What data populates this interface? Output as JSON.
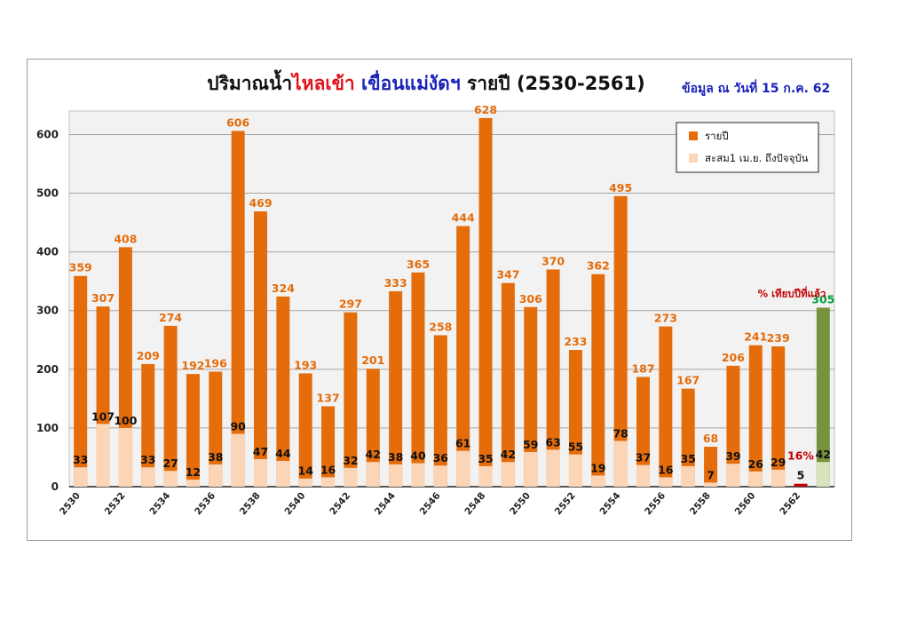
{
  "title": {
    "part1": "ปริมาณน้ำ",
    "part2": "ไหลเข้า",
    "part3": "เขื่อนแม่งัดฯ",
    "part4": "รายปี  (2530-2561)"
  },
  "date_info": "ข้อมูล ณ วันที่ 15 ก.ค. 62",
  "annotation_text": "% เทียบปีที่แล้ว",
  "percent_label": "16%",
  "colors": {
    "annual": "#e46c0a",
    "cumulative": "#fbd5b5",
    "current_annual": "#77933c",
    "current_cumulative": "#d7e4bd",
    "current_value_label": "#00a040",
    "annual_label": "#e46c0a",
    "current_bar": "#c00000",
    "annotation": "#c00000"
  },
  "chart_data": {
    "type": "bar",
    "categories": [
      "2530",
      "2531",
      "2532",
      "2533",
      "2534",
      "2535",
      "2536",
      "2537",
      "2538",
      "2539",
      "2540",
      "2541",
      "2542",
      "2543",
      "2544",
      "2545",
      "2546",
      "2547",
      "2548",
      "2549",
      "2550",
      "2551",
      "2552",
      "2553",
      "2554",
      "2555",
      "2556",
      "2557",
      "2558",
      "2559",
      "2560",
      "2561",
      "2562",
      "2563"
    ],
    "x_tick_labels": [
      "2530",
      "2532",
      "2534",
      "2536",
      "2538",
      "2540",
      "2542",
      "2544",
      "2546",
      "2548",
      "2550",
      "2552",
      "2554",
      "2556",
      "2558",
      "2560",
      "2562"
    ],
    "series": [
      {
        "name": "รายปี",
        "values": [
          359,
          307,
          408,
          209,
          274,
          192,
          196,
          606,
          469,
          324,
          193,
          137,
          297,
          201,
          333,
          365,
          258,
          444,
          628,
          347,
          306,
          370,
          233,
          362,
          495,
          187,
          273,
          167,
          68,
          206,
          241,
          239,
          null,
          305
        ]
      },
      {
        "name": "สะสม1 เม.ย. ถึงปัจจุบัน",
        "values": [
          33,
          107,
          100,
          33,
          27,
          12,
          38,
          90,
          47,
          44,
          14,
          16,
          32,
          42,
          38,
          40,
          36,
          61,
          35,
          42,
          59,
          63,
          55,
          19,
          78,
          37,
          16,
          35,
          7,
          39,
          26,
          29,
          5,
          42
        ]
      }
    ],
    "yticks": [
      0,
      100,
      200,
      300,
      400,
      500,
      600
    ],
    "ylim": [
      0,
      640
    ],
    "grid": true,
    "legend_position": "top-right"
  }
}
